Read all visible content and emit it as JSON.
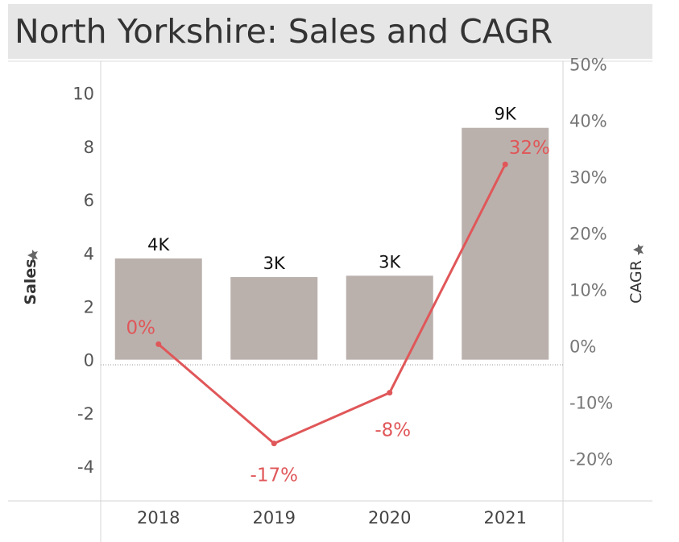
{
  "title": "North Yorkshire: Sales and CAGR",
  "colors": {
    "bar": "#bab1ad",
    "line": "#e05759",
    "title_bg": "#e6e6e6"
  },
  "chart_data": {
    "type": "bar",
    "categories": [
      "2018",
      "2019",
      "2020",
      "2021"
    ],
    "series": [
      {
        "name": "Sales",
        "type": "bar",
        "axis": "left",
        "values": [
          3.8,
          3.1,
          3.15,
          8.7
        ],
        "labels": [
          "4K",
          "3K",
          "3K",
          "9K"
        ]
      },
      {
        "name": "CAGR",
        "type": "line",
        "axis": "right",
        "values": [
          0.3,
          -17.3,
          -8.3,
          32.2
        ],
        "labels": [
          "0%",
          "-17%",
          "-8%",
          "32%"
        ]
      }
    ],
    "ylabel": "Sales",
    "y2label": "CAGR",
    "ylim": [
      -5.3,
      11.2
    ],
    "y2lim": [
      -27.5,
      50.5
    ],
    "yticks": [
      "10",
      "8",
      "6",
      "4",
      "2",
      "0",
      "-2",
      "-4"
    ],
    "y2ticks": [
      "50%",
      "40%",
      "30%",
      "20%",
      "10%",
      "0%",
      "-10%",
      "-20%"
    ],
    "grid": false
  }
}
